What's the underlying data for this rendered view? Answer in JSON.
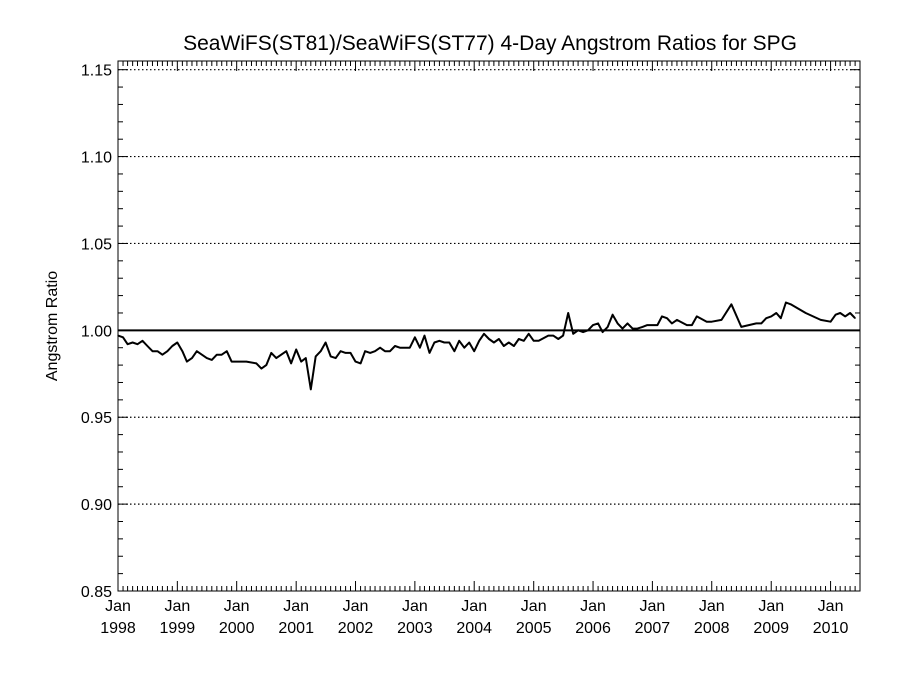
{
  "chart_data": {
    "type": "line",
    "title": "SeaWiFS(ST81)/SeaWiFS(ST77) 4-Day Angstrom Ratios for SPG",
    "xlabel": "",
    "ylabel": "Angstrom Ratio",
    "xlim": [
      "1998-01-01",
      "2010-07-01"
    ],
    "ylim": [
      0.85,
      1.155
    ],
    "grid": "horizontal dotted at major ticks",
    "legend": "none",
    "reference_line": 1.0,
    "y_ticks": [
      "0.85",
      "0.90",
      "0.95",
      "1.00",
      "1.05",
      "1.10",
      "1.15"
    ],
    "x_ticks": [
      {
        "date": "1998-01-01",
        "month": "Jan",
        "year": "1998"
      },
      {
        "date": "1999-01-01",
        "month": "Jan",
        "year": "1999"
      },
      {
        "date": "2000-01-01",
        "month": "Jan",
        "year": "2000"
      },
      {
        "date": "2001-01-01",
        "month": "Jan",
        "year": "2001"
      },
      {
        "date": "2002-01-01",
        "month": "Jan",
        "year": "2002"
      },
      {
        "date": "2003-01-01",
        "month": "Jan",
        "year": "2003"
      },
      {
        "date": "2004-01-01",
        "month": "Jan",
        "year": "2004"
      },
      {
        "date": "2005-01-01",
        "month": "Jan",
        "year": "2005"
      },
      {
        "date": "2006-01-01",
        "month": "Jan",
        "year": "2006"
      },
      {
        "date": "2007-01-01",
        "month": "Jan",
        "year": "2007"
      },
      {
        "date": "2008-01-01",
        "month": "Jan",
        "year": "2008"
      },
      {
        "date": "2009-01-01",
        "month": "Jan",
        "year": "2009"
      },
      {
        "date": "2010-01-01",
        "month": "Jan",
        "year": "2010"
      }
    ],
    "series": [
      {
        "color": "#000000",
        "x": [
          "1998-01-01",
          "1998-02-01",
          "1998-03-01",
          "1998-04-01",
          "1998-05-01",
          "1998-06-01",
          "1998-07-01",
          "1998-08-01",
          "1998-09-01",
          "1998-10-01",
          "1998-11-01",
          "1998-12-01",
          "1999-01-01",
          "1999-02-01",
          "1999-03-01",
          "1999-04-01",
          "1999-05-01",
          "1999-06-01",
          "1999-07-01",
          "1999-08-01",
          "1999-09-01",
          "1999-10-01",
          "1999-11-01",
          "1999-12-01",
          "2000-01-01",
          "2000-03-01",
          "2000-05-01",
          "2000-06-01",
          "2000-07-01",
          "2000-08-01",
          "2000-09-01",
          "2000-10-01",
          "2000-11-01",
          "2000-12-01",
          "2001-01-01",
          "2001-02-01",
          "2001-03-01",
          "2001-04-01",
          "2001-05-01",
          "2001-06-01",
          "2001-07-01",
          "2001-08-01",
          "2001-09-01",
          "2001-10-01",
          "2001-11-01",
          "2001-12-01",
          "2002-01-01",
          "2002-02-01",
          "2002-03-01",
          "2002-04-01",
          "2002-05-01",
          "2002-06-01",
          "2002-07-01",
          "2002-08-01",
          "2002-09-01",
          "2002-10-01",
          "2002-11-01",
          "2002-12-01",
          "2003-01-01",
          "2003-02-01",
          "2003-03-01",
          "2003-04-01",
          "2003-05-01",
          "2003-06-01",
          "2003-07-01",
          "2003-08-01",
          "2003-09-01",
          "2003-10-01",
          "2003-11-01",
          "2003-12-01",
          "2004-01-01",
          "2004-02-01",
          "2004-03-01",
          "2004-04-01",
          "2004-05-01",
          "2004-06-01",
          "2004-07-01",
          "2004-08-01",
          "2004-09-01",
          "2004-10-01",
          "2004-11-01",
          "2004-12-01",
          "2005-01-01",
          "2005-02-01",
          "2005-04-01",
          "2005-05-01",
          "2005-06-01",
          "2005-07-01",
          "2005-08-01",
          "2005-09-01",
          "2005-10-01",
          "2005-11-01",
          "2005-12-01",
          "2006-01-01",
          "2006-02-01",
          "2006-03-01",
          "2006-04-01",
          "2006-05-01",
          "2006-06-01",
          "2006-07-01",
          "2006-08-01",
          "2006-09-01",
          "2006-10-01",
          "2006-11-01",
          "2006-12-01",
          "2007-02-01",
          "2007-03-01",
          "2007-04-01",
          "2007-05-01",
          "2007-06-01",
          "2007-08-01",
          "2007-09-01",
          "2007-10-01",
          "2007-12-01",
          "2008-01-01",
          "2008-03-01",
          "2008-05-01",
          "2008-07-01",
          "2008-10-01",
          "2008-11-01",
          "2008-12-01",
          "2009-01-01",
          "2009-02-01",
          "2009-03-01",
          "2009-04-01",
          "2009-05-01",
          "2009-08-01",
          "2009-11-01",
          "2010-01-01",
          "2010-02-01",
          "2010-03-01",
          "2010-04-01",
          "2010-05-01",
          "2010-06-01"
        ],
        "y": [
          0.997,
          0.996,
          0.992,
          0.993,
          0.992,
          0.994,
          0.991,
          0.988,
          0.988,
          0.986,
          0.988,
          0.991,
          0.993,
          0.988,
          0.982,
          0.984,
          0.988,
          0.986,
          0.984,
          0.983,
          0.986,
          0.986,
          0.988,
          0.982,
          0.982,
          0.982,
          0.981,
          0.978,
          0.98,
          0.987,
          0.984,
          0.986,
          0.988,
          0.981,
          0.989,
          0.982,
          0.984,
          0.966,
          0.985,
          0.988,
          0.993,
          0.985,
          0.984,
          0.988,
          0.987,
          0.987,
          0.982,
          0.981,
          0.988,
          0.987,
          0.988,
          0.99,
          0.988,
          0.988,
          0.991,
          0.99,
          0.99,
          0.99,
          0.996,
          0.99,
          0.997,
          0.987,
          0.993,
          0.994,
          0.993,
          0.993,
          0.988,
          0.994,
          0.99,
          0.993,
          0.988,
          0.994,
          0.998,
          0.995,
          0.993,
          0.995,
          0.991,
          0.993,
          0.991,
          0.995,
          0.994,
          0.998,
          0.994,
          0.994,
          0.997,
          0.997,
          0.995,
          0.997,
          1.01,
          0.998,
          1.0,
          0.999,
          1.0,
          1.003,
          1.004,
          0.999,
          1.002,
          1.009,
          1.004,
          1.001,
          1.004,
          1.001,
          1.001,
          1.002,
          1.003,
          1.003,
          1.008,
          1.007,
          1.004,
          1.006,
          1.003,
          1.003,
          1.008,
          1.005,
          1.005,
          1.006,
          1.015,
          1.002,
          1.004,
          1.004,
          1.007,
          1.008,
          1.01,
          1.007,
          1.016,
          1.015,
          1.01,
          1.006,
          1.005,
          1.009,
          1.01,
          1.008,
          1.01,
          1.007
        ]
      }
    ]
  }
}
